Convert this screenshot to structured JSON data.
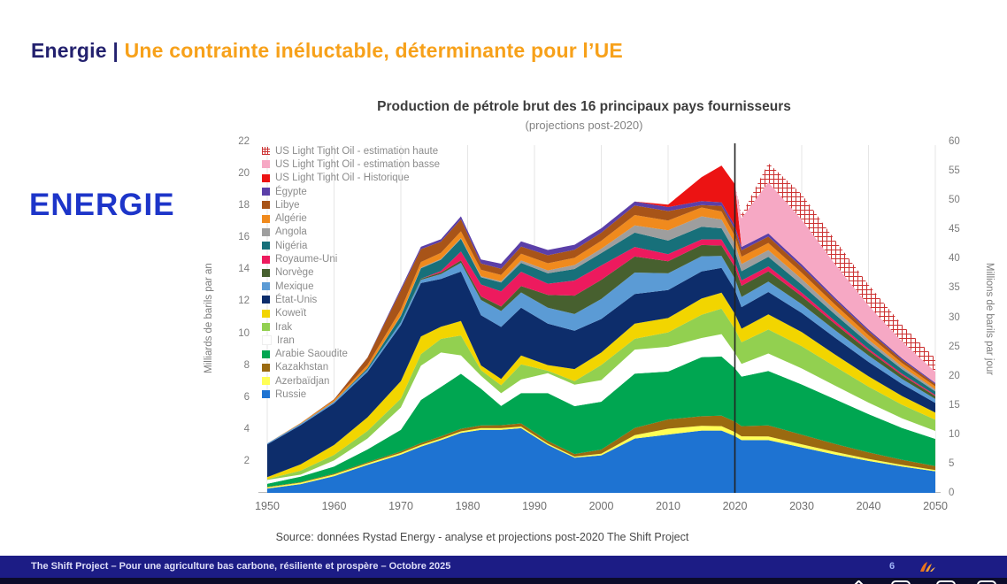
{
  "header": {
    "prefix": "Energie |",
    "title": "Une contrainte inéluctable, déterminante pour l’UE"
  },
  "side_label": "ENERGIE",
  "chart": {
    "title": "Production de pétrole brut des 16 principaux pays fournisseurs",
    "subtitle": "(projections post-2020)",
    "left_axis_label": "Milliards de barils par an",
    "right_axis_label": "Millions de barils par jour",
    "source": "Source: données Rystad Energy - analyse et projections post-2020  The Shift Project"
  },
  "chart_data": {
    "type": "area",
    "stacked": true,
    "title": "Production de pétrole brut des 16 principaux pays fournisseurs",
    "subtitle": "(projections post-2020)",
    "xlabel": "",
    "ylabel_left": "Milliards de barils par an",
    "ylabel_right": "Millions de barils par jour",
    "ylim_left": [
      0,
      22
    ],
    "ylim_right": [
      0,
      60
    ],
    "xlim": [
      1950,
      2050
    ],
    "x_ticks": [
      1950,
      1960,
      1970,
      1980,
      1990,
      2000,
      2010,
      2020,
      2030,
      2040,
      2050
    ],
    "left_ticks": [
      2,
      4,
      6,
      8,
      10,
      12,
      14,
      16,
      18,
      20,
      22
    ],
    "right_ticks": [
      0,
      5,
      10,
      15,
      20,
      25,
      30,
      35,
      40,
      45,
      50,
      55,
      60
    ],
    "grid": "vertical-decades",
    "legend_position": "upper-left-inside",
    "annotation_vline_year": 2020,
    "x": [
      1950,
      1955,
      1960,
      1965,
      1970,
      1973,
      1976,
      1979,
      1982,
      1985,
      1988,
      1992,
      1996,
      2000,
      2005,
      2010,
      2015,
      2018,
      2020,
      2021,
      2025,
      2030,
      2035,
      2040,
      2045,
      2050
    ],
    "series": [
      {
        "name": "Russie",
        "color": "#1e73d2",
        "values": [
          0.27,
          0.55,
          1.05,
          1.75,
          2.4,
          2.9,
          3.3,
          3.75,
          3.95,
          3.95,
          4.05,
          3.0,
          2.2,
          2.35,
          3.4,
          3.65,
          3.9,
          3.9,
          3.55,
          3.3,
          3.3,
          2.85,
          2.4,
          2.0,
          1.65,
          1.35
        ]
      },
      {
        "name": "Azerbaïdjan",
        "color": "#ffff55",
        "values": [
          0.08,
          0.09,
          0.1,
          0.1,
          0.1,
          0.1,
          0.1,
          0.1,
          0.1,
          0.1,
          0.1,
          0.08,
          0.07,
          0.1,
          0.22,
          0.37,
          0.3,
          0.28,
          0.25,
          0.24,
          0.23,
          0.19,
          0.16,
          0.13,
          0.1,
          0.08
        ]
      },
      {
        "name": "Kazakhstan",
        "color": "#9a6a10",
        "values": [
          0.02,
          0.03,
          0.05,
          0.07,
          0.1,
          0.12,
          0.14,
          0.16,
          0.18,
          0.19,
          0.2,
          0.17,
          0.16,
          0.26,
          0.45,
          0.58,
          0.6,
          0.66,
          0.66,
          0.64,
          0.7,
          0.6,
          0.5,
          0.4,
          0.32,
          0.25
        ]
      },
      {
        "name": "Arabie Saoudite",
        "color": "#00a651",
        "values": [
          0.2,
          0.35,
          0.45,
          0.8,
          1.35,
          2.7,
          3.1,
          3.45,
          2.3,
          1.2,
          1.9,
          3.0,
          3.0,
          3.0,
          3.4,
          3.0,
          3.7,
          3.7,
          3.35,
          3.1,
          3.4,
          3.15,
          2.8,
          2.4,
          2.0,
          1.7
        ]
      },
      {
        "name": "Iran",
        "color": "#ffffff",
        "values": [
          0.24,
          0.12,
          0.38,
          0.68,
          1.4,
          2.15,
          2.15,
          1.15,
          0.8,
          0.8,
          0.85,
          1.25,
          1.35,
          1.35,
          1.5,
          1.55,
          1.2,
          1.4,
          0.95,
          0.8,
          1.1,
          1.0,
          0.85,
          0.72,
          0.6,
          0.5
        ]
      },
      {
        "name": "Irak",
        "color": "#92d050",
        "values": [
          0.05,
          0.25,
          0.35,
          0.48,
          0.55,
          0.72,
          0.85,
          1.25,
          0.35,
          0.5,
          0.95,
          0.15,
          0.22,
          0.95,
          0.68,
          0.9,
          1.45,
          1.6,
          1.5,
          1.35,
          1.5,
          1.4,
          1.2,
          1.0,
          0.85,
          0.7
        ]
      },
      {
        "name": "Koweït",
        "color": "#f2d500",
        "values": [
          0.12,
          0.4,
          0.62,
          0.85,
          1.1,
          1.1,
          0.76,
          0.9,
          0.3,
          0.4,
          0.55,
          0.35,
          0.75,
          0.78,
          0.95,
          0.9,
          1.02,
          1.0,
          0.95,
          0.85,
          0.95,
          0.88,
          0.75,
          0.65,
          0.55,
          0.45
        ]
      },
      {
        "name": "État-Unis",
        "color": "#0d2d6b",
        "values": [
          2.05,
          2.45,
          2.6,
          2.85,
          3.5,
          3.35,
          3.0,
          3.1,
          3.15,
          3.25,
          3.0,
          2.6,
          2.4,
          2.1,
          1.85,
          1.75,
          1.7,
          1.55,
          1.5,
          1.35,
          1.4,
          1.2,
          1.05,
          0.9,
          0.75,
          0.6
        ]
      },
      {
        "name": "Mexique",
        "color": "#5b9bd5",
        "values": [
          0.07,
          0.09,
          0.1,
          0.13,
          0.18,
          0.2,
          0.3,
          0.55,
          0.95,
          1.0,
          0.95,
          1.0,
          1.05,
          1.25,
          1.35,
          1.05,
          0.95,
          0.75,
          0.7,
          0.64,
          0.65,
          0.55,
          0.47,
          0.4,
          0.32,
          0.25
        ]
      },
      {
        "name": "Norvège",
        "color": "#47602f",
        "values": [
          0.0,
          0.0,
          0.0,
          0.0,
          0.0,
          0.07,
          0.1,
          0.15,
          0.22,
          0.28,
          0.4,
          0.8,
          1.15,
          1.2,
          1.0,
          0.75,
          0.7,
          0.65,
          0.72,
          0.7,
          0.65,
          0.5,
          0.4,
          0.3,
          0.23,
          0.18
        ]
      },
      {
        "name": "Royaume-Uni",
        "color": "#ed1a5e",
        "values": [
          0.0,
          0.0,
          0.0,
          0.0,
          0.0,
          0.0,
          0.1,
          0.55,
          0.75,
          0.95,
          0.9,
          0.7,
          0.95,
          0.9,
          0.6,
          0.45,
          0.35,
          0.38,
          0.35,
          0.33,
          0.3,
          0.22,
          0.17,
          0.12,
          0.09,
          0.07
        ]
      },
      {
        "name": "Nigéria",
        "color": "#17707a",
        "values": [
          0.0,
          0.0,
          0.01,
          0.1,
          0.4,
          0.65,
          0.7,
          0.8,
          0.45,
          0.55,
          0.55,
          0.65,
          0.72,
          0.78,
          0.9,
          0.85,
          0.8,
          0.7,
          0.65,
          0.58,
          0.6,
          0.5,
          0.42,
          0.35,
          0.28,
          0.22
        ]
      },
      {
        "name": "Angola",
        "color": "#9e9e9e",
        "values": [
          0.0,
          0.0,
          0.0,
          0.0,
          0.03,
          0.05,
          0.05,
          0.05,
          0.07,
          0.08,
          0.15,
          0.18,
          0.25,
          0.27,
          0.45,
          0.65,
          0.65,
          0.55,
          0.48,
          0.45,
          0.42,
          0.35,
          0.28,
          0.22,
          0.17,
          0.13
        ]
      },
      {
        "name": "Algérie",
        "color": "#f08a1d",
        "values": [
          0.0,
          0.05,
          0.1,
          0.2,
          0.37,
          0.35,
          0.38,
          0.42,
          0.4,
          0.4,
          0.43,
          0.45,
          0.45,
          0.5,
          0.65,
          0.6,
          0.55,
          0.5,
          0.48,
          0.46,
          0.45,
          0.4,
          0.33,
          0.28,
          0.22,
          0.18
        ]
      },
      {
        "name": "Libye",
        "color": "#a85418",
        "values": [
          0.0,
          0.0,
          0.05,
          0.45,
          1.2,
          0.8,
          0.7,
          0.75,
          0.4,
          0.38,
          0.45,
          0.5,
          0.5,
          0.5,
          0.6,
          0.6,
          0.15,
          0.35,
          0.42,
          0.4,
          0.4,
          0.35,
          0.3,
          0.25,
          0.2,
          0.15
        ]
      },
      {
        "name": "Égypte",
        "color": "#5b3fa8",
        "values": [
          0.0,
          0.0,
          0.0,
          0.02,
          0.12,
          0.15,
          0.15,
          0.19,
          0.25,
          0.32,
          0.32,
          0.33,
          0.32,
          0.28,
          0.25,
          0.25,
          0.25,
          0.23,
          0.22,
          0.21,
          0.2,
          0.17,
          0.14,
          0.12,
          0.1,
          0.08
        ]
      },
      {
        "name": "US Light Tight Oil - Historique",
        "color": "#ec1313",
        "values": [
          0,
          0,
          0,
          0,
          0,
          0,
          0,
          0,
          0,
          0,
          0,
          0,
          0,
          0,
          0,
          0.15,
          1.5,
          2.3,
          2.6,
          0,
          0,
          0,
          0,
          0,
          0,
          0
        ]
      },
      {
        "name": "US Light Tight Oil - estimation basse",
        "color": "#f6a8c4",
        "values": [
          0,
          0,
          0,
          0,
          0,
          0,
          0,
          0,
          0,
          0,
          0,
          0,
          0,
          0,
          0,
          0,
          0,
          0,
          0,
          1.8,
          3.2,
          2.8,
          2.1,
          1.5,
          1.05,
          0.7
        ]
      },
      {
        "name": "US Light Tight Oil - estimation haute",
        "color": "#cc3333",
        "pattern": "hatch",
        "values": [
          0,
          0,
          0,
          0,
          0,
          0,
          0,
          0,
          0,
          0,
          0,
          0,
          0,
          0,
          0,
          0,
          0,
          0,
          0,
          0.2,
          1.2,
          1.6,
          1.5,
          1.3,
          1.05,
          0.85
        ]
      }
    ]
  },
  "footer": {
    "text": "The Shift Project – Pour une agriculture bas carbone, résiliente et prospère – Octobre 2025",
    "page": "6",
    "logo": "shift-project-orange-logo"
  },
  "player": {
    "icons": [
      "partial-control-diamond",
      "partial-control-button",
      "partial-control-button",
      "partial-control-button"
    ]
  },
  "colors": {
    "header_navy": "#23216e",
    "header_orange": "#f7a11a",
    "side_label_blue": "#1d35c9",
    "footer_bar": "#1c1c85",
    "vline": "#222222"
  }
}
